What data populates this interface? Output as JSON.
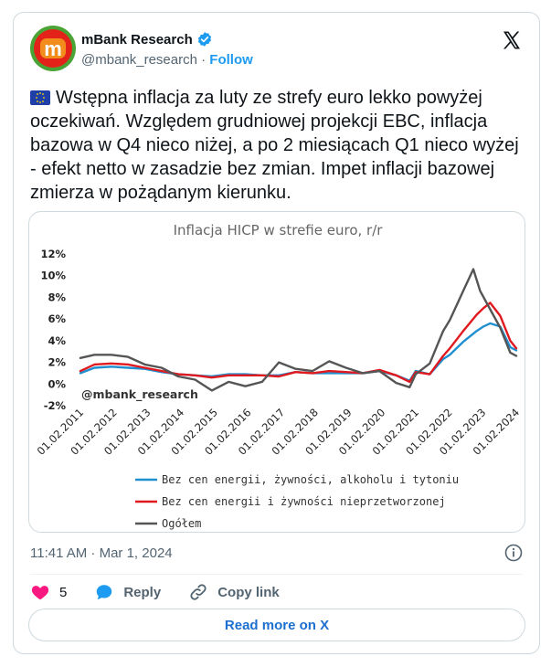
{
  "tweet": {
    "display_name": "mBank Research",
    "handle": "@mbank_research",
    "separator": "·",
    "follow_label": "Follow",
    "text": "Wstępna inflacja za luty ze strefy euro lekko powyżej oczekiwań. Względem grudniowej projekcji EBC, inflacja bazowa w Q4 nieco niżej, a po 2 miesiącach Q1 nieco wyżej - efekt netto w zasadzie bez zmian. Impet inflacji bazowej zmierza w pożądanym kierunku.",
    "flag_icon": "eu-flag-icon",
    "timestamp": "11:41 AM · Mar 1, 2024",
    "likes_count": "5",
    "reply_label": "Reply",
    "copy_link_label": "Copy link",
    "read_more_label": "Read more on X"
  },
  "colors": {
    "brand_red": "#e32219",
    "brand_green": "#4aa335",
    "link_blue": "#1d9bf0",
    "heart": "#f91880"
  },
  "chart_data": {
    "type": "line",
    "title": "Inflacja HICP w strefie euro, r/r",
    "watermark": "@mbank_research",
    "ylim": [
      -2,
      12
    ],
    "yticks": [
      -2,
      0,
      2,
      4,
      6,
      8,
      10,
      12
    ],
    "ytick_labels": [
      "-2%",
      "0%",
      "2%",
      "4%",
      "6%",
      "8%",
      "10%",
      "12%"
    ],
    "xlim": [
      2011.08,
      2024.08
    ],
    "xticks": [
      2011.08,
      2012.08,
      2013.08,
      2014.08,
      2015.08,
      2016.08,
      2017.08,
      2018.08,
      2019.08,
      2020.08,
      2021.08,
      2022.08,
      2023.08,
      2024.08
    ],
    "xtick_labels": [
      "01.02.2011",
      "01.02.2012",
      "01.02.2013",
      "01.02.2014",
      "01.02.2015",
      "01.02.2016",
      "01.02.2017",
      "01.02.2018",
      "01.02.2019",
      "01.02.2020",
      "01.02.2021",
      "01.02.2022",
      "01.02.2023",
      "01.02.2024"
    ],
    "legend_position": "bottom",
    "series": [
      {
        "name": "Bez cen energii, żywności, alkoholu i tytoniu",
        "color": "#1f8fd0",
        "x": [
          2011.08,
          2011.5,
          2012.0,
          2012.5,
          2013.0,
          2013.5,
          2014.0,
          2014.5,
          2015.0,
          2015.5,
          2016.0,
          2016.5,
          2017.0,
          2017.5,
          2018.0,
          2018.5,
          2019.0,
          2019.5,
          2020.0,
          2020.5,
          2020.9,
          2021.08,
          2021.5,
          2021.9,
          2022.1,
          2022.5,
          2022.9,
          2023.1,
          2023.3,
          2023.6,
          2023.9,
          2024.08
        ],
        "y": [
          1.0,
          1.5,
          1.6,
          1.5,
          1.4,
          1.1,
          0.9,
          0.8,
          0.7,
          0.9,
          0.9,
          0.8,
          0.8,
          1.1,
          1.0,
          1.0,
          1.0,
          1.0,
          1.2,
          0.8,
          0.3,
          1.2,
          0.9,
          2.3,
          2.7,
          3.9,
          4.9,
          5.3,
          5.6,
          5.3,
          3.4,
          3.1
        ]
      },
      {
        "name": "Bez cen energii i żywności nieprzetworzonej",
        "color": "#e0191f",
        "x": [
          2011.08,
          2011.5,
          2012.0,
          2012.5,
          2013.0,
          2013.5,
          2014.0,
          2014.5,
          2015.0,
          2015.5,
          2016.0,
          2016.5,
          2017.0,
          2017.5,
          2018.0,
          2018.5,
          2019.0,
          2019.5,
          2020.0,
          2020.5,
          2020.9,
          2021.08,
          2021.5,
          2021.9,
          2022.1,
          2022.5,
          2022.9,
          2023.1,
          2023.3,
          2023.6,
          2023.9,
          2024.08
        ],
        "y": [
          1.2,
          1.8,
          1.9,
          1.8,
          1.5,
          1.2,
          0.9,
          0.8,
          0.6,
          0.8,
          0.8,
          0.8,
          0.7,
          1.1,
          1.0,
          1.2,
          1.1,
          1.0,
          1.3,
          0.8,
          0.2,
          1.1,
          0.9,
          2.6,
          3.3,
          4.9,
          6.4,
          7.0,
          7.5,
          6.3,
          4.0,
          3.3
        ]
      },
      {
        "name": "Ogółem",
        "color": "#555555",
        "x": [
          2011.08,
          2011.5,
          2012.0,
          2012.5,
          2013.0,
          2013.5,
          2014.0,
          2014.5,
          2015.0,
          2015.5,
          2016.0,
          2016.5,
          2017.0,
          2017.5,
          2018.0,
          2018.5,
          2019.0,
          2019.5,
          2020.0,
          2020.5,
          2020.9,
          2021.08,
          2021.5,
          2021.9,
          2022.1,
          2022.5,
          2022.8,
          2023.0,
          2023.3,
          2023.6,
          2023.9,
          2024.08
        ],
        "y": [
          2.4,
          2.7,
          2.7,
          2.5,
          1.8,
          1.5,
          0.7,
          0.4,
          -0.6,
          0.2,
          -0.2,
          0.2,
          2.0,
          1.4,
          1.2,
          2.1,
          1.5,
          1.0,
          1.2,
          0.1,
          -0.3,
          0.9,
          1.9,
          4.9,
          5.9,
          8.6,
          10.6,
          8.6,
          6.9,
          5.2,
          2.9,
          2.6
        ]
      }
    ]
  }
}
